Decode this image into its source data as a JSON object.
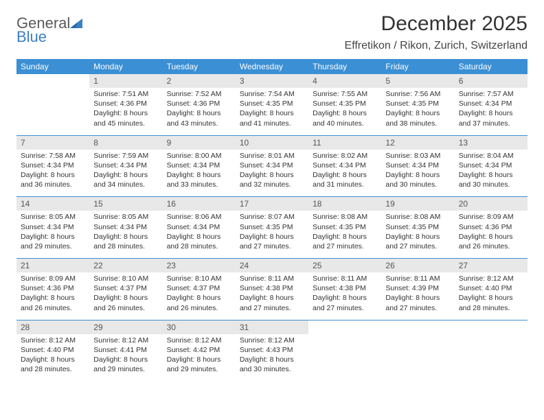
{
  "logo": {
    "line1": "General",
    "line2": "Blue"
  },
  "title": "December 2025",
  "location": "Effretikon / Rikon, Zurich, Switzerland",
  "colors": {
    "header_bg": "#3b8fd4",
    "header_text": "#ffffff",
    "daynum_bg": "#e8e8e8",
    "week_border": "#3b8fd4",
    "logo_blue": "#3b7fc4",
    "logo_gray": "#5a5a5a"
  },
  "day_headers": [
    "Sunday",
    "Monday",
    "Tuesday",
    "Wednesday",
    "Thursday",
    "Friday",
    "Saturday"
  ],
  "weeks": [
    [
      {
        "empty": true
      },
      {
        "num": "1",
        "sunrise": "Sunrise: 7:51 AM",
        "sunset": "Sunset: 4:36 PM",
        "dl1": "Daylight: 8 hours",
        "dl2": "and 45 minutes."
      },
      {
        "num": "2",
        "sunrise": "Sunrise: 7:52 AM",
        "sunset": "Sunset: 4:36 PM",
        "dl1": "Daylight: 8 hours",
        "dl2": "and 43 minutes."
      },
      {
        "num": "3",
        "sunrise": "Sunrise: 7:54 AM",
        "sunset": "Sunset: 4:35 PM",
        "dl1": "Daylight: 8 hours",
        "dl2": "and 41 minutes."
      },
      {
        "num": "4",
        "sunrise": "Sunrise: 7:55 AM",
        "sunset": "Sunset: 4:35 PM",
        "dl1": "Daylight: 8 hours",
        "dl2": "and 40 minutes."
      },
      {
        "num": "5",
        "sunrise": "Sunrise: 7:56 AM",
        "sunset": "Sunset: 4:35 PM",
        "dl1": "Daylight: 8 hours",
        "dl2": "and 38 minutes."
      },
      {
        "num": "6",
        "sunrise": "Sunrise: 7:57 AM",
        "sunset": "Sunset: 4:34 PM",
        "dl1": "Daylight: 8 hours",
        "dl2": "and 37 minutes."
      }
    ],
    [
      {
        "num": "7",
        "sunrise": "Sunrise: 7:58 AM",
        "sunset": "Sunset: 4:34 PM",
        "dl1": "Daylight: 8 hours",
        "dl2": "and 36 minutes."
      },
      {
        "num": "8",
        "sunrise": "Sunrise: 7:59 AM",
        "sunset": "Sunset: 4:34 PM",
        "dl1": "Daylight: 8 hours",
        "dl2": "and 34 minutes."
      },
      {
        "num": "9",
        "sunrise": "Sunrise: 8:00 AM",
        "sunset": "Sunset: 4:34 PM",
        "dl1": "Daylight: 8 hours",
        "dl2": "and 33 minutes."
      },
      {
        "num": "10",
        "sunrise": "Sunrise: 8:01 AM",
        "sunset": "Sunset: 4:34 PM",
        "dl1": "Daylight: 8 hours",
        "dl2": "and 32 minutes."
      },
      {
        "num": "11",
        "sunrise": "Sunrise: 8:02 AM",
        "sunset": "Sunset: 4:34 PM",
        "dl1": "Daylight: 8 hours",
        "dl2": "and 31 minutes."
      },
      {
        "num": "12",
        "sunrise": "Sunrise: 8:03 AM",
        "sunset": "Sunset: 4:34 PM",
        "dl1": "Daylight: 8 hours",
        "dl2": "and 30 minutes."
      },
      {
        "num": "13",
        "sunrise": "Sunrise: 8:04 AM",
        "sunset": "Sunset: 4:34 PM",
        "dl1": "Daylight: 8 hours",
        "dl2": "and 30 minutes."
      }
    ],
    [
      {
        "num": "14",
        "sunrise": "Sunrise: 8:05 AM",
        "sunset": "Sunset: 4:34 PM",
        "dl1": "Daylight: 8 hours",
        "dl2": "and 29 minutes."
      },
      {
        "num": "15",
        "sunrise": "Sunrise: 8:05 AM",
        "sunset": "Sunset: 4:34 PM",
        "dl1": "Daylight: 8 hours",
        "dl2": "and 28 minutes."
      },
      {
        "num": "16",
        "sunrise": "Sunrise: 8:06 AM",
        "sunset": "Sunset: 4:34 PM",
        "dl1": "Daylight: 8 hours",
        "dl2": "and 28 minutes."
      },
      {
        "num": "17",
        "sunrise": "Sunrise: 8:07 AM",
        "sunset": "Sunset: 4:35 PM",
        "dl1": "Daylight: 8 hours",
        "dl2": "and 27 minutes."
      },
      {
        "num": "18",
        "sunrise": "Sunrise: 8:08 AM",
        "sunset": "Sunset: 4:35 PM",
        "dl1": "Daylight: 8 hours",
        "dl2": "and 27 minutes."
      },
      {
        "num": "19",
        "sunrise": "Sunrise: 8:08 AM",
        "sunset": "Sunset: 4:35 PM",
        "dl1": "Daylight: 8 hours",
        "dl2": "and 27 minutes."
      },
      {
        "num": "20",
        "sunrise": "Sunrise: 8:09 AM",
        "sunset": "Sunset: 4:36 PM",
        "dl1": "Daylight: 8 hours",
        "dl2": "and 26 minutes."
      }
    ],
    [
      {
        "num": "21",
        "sunrise": "Sunrise: 8:09 AM",
        "sunset": "Sunset: 4:36 PM",
        "dl1": "Daylight: 8 hours",
        "dl2": "and 26 minutes."
      },
      {
        "num": "22",
        "sunrise": "Sunrise: 8:10 AM",
        "sunset": "Sunset: 4:37 PM",
        "dl1": "Daylight: 8 hours",
        "dl2": "and 26 minutes."
      },
      {
        "num": "23",
        "sunrise": "Sunrise: 8:10 AM",
        "sunset": "Sunset: 4:37 PM",
        "dl1": "Daylight: 8 hours",
        "dl2": "and 26 minutes."
      },
      {
        "num": "24",
        "sunrise": "Sunrise: 8:11 AM",
        "sunset": "Sunset: 4:38 PM",
        "dl1": "Daylight: 8 hours",
        "dl2": "and 27 minutes."
      },
      {
        "num": "25",
        "sunrise": "Sunrise: 8:11 AM",
        "sunset": "Sunset: 4:38 PM",
        "dl1": "Daylight: 8 hours",
        "dl2": "and 27 minutes."
      },
      {
        "num": "26",
        "sunrise": "Sunrise: 8:11 AM",
        "sunset": "Sunset: 4:39 PM",
        "dl1": "Daylight: 8 hours",
        "dl2": "and 27 minutes."
      },
      {
        "num": "27",
        "sunrise": "Sunrise: 8:12 AM",
        "sunset": "Sunset: 4:40 PM",
        "dl1": "Daylight: 8 hours",
        "dl2": "and 28 minutes."
      }
    ],
    [
      {
        "num": "28",
        "sunrise": "Sunrise: 8:12 AM",
        "sunset": "Sunset: 4:40 PM",
        "dl1": "Daylight: 8 hours",
        "dl2": "and 28 minutes."
      },
      {
        "num": "29",
        "sunrise": "Sunrise: 8:12 AM",
        "sunset": "Sunset: 4:41 PM",
        "dl1": "Daylight: 8 hours",
        "dl2": "and 29 minutes."
      },
      {
        "num": "30",
        "sunrise": "Sunrise: 8:12 AM",
        "sunset": "Sunset: 4:42 PM",
        "dl1": "Daylight: 8 hours",
        "dl2": "and 29 minutes."
      },
      {
        "num": "31",
        "sunrise": "Sunrise: 8:12 AM",
        "sunset": "Sunset: 4:43 PM",
        "dl1": "Daylight: 8 hours",
        "dl2": "and 30 minutes."
      },
      {
        "empty": true
      },
      {
        "empty": true
      },
      {
        "empty": true
      }
    ]
  ]
}
